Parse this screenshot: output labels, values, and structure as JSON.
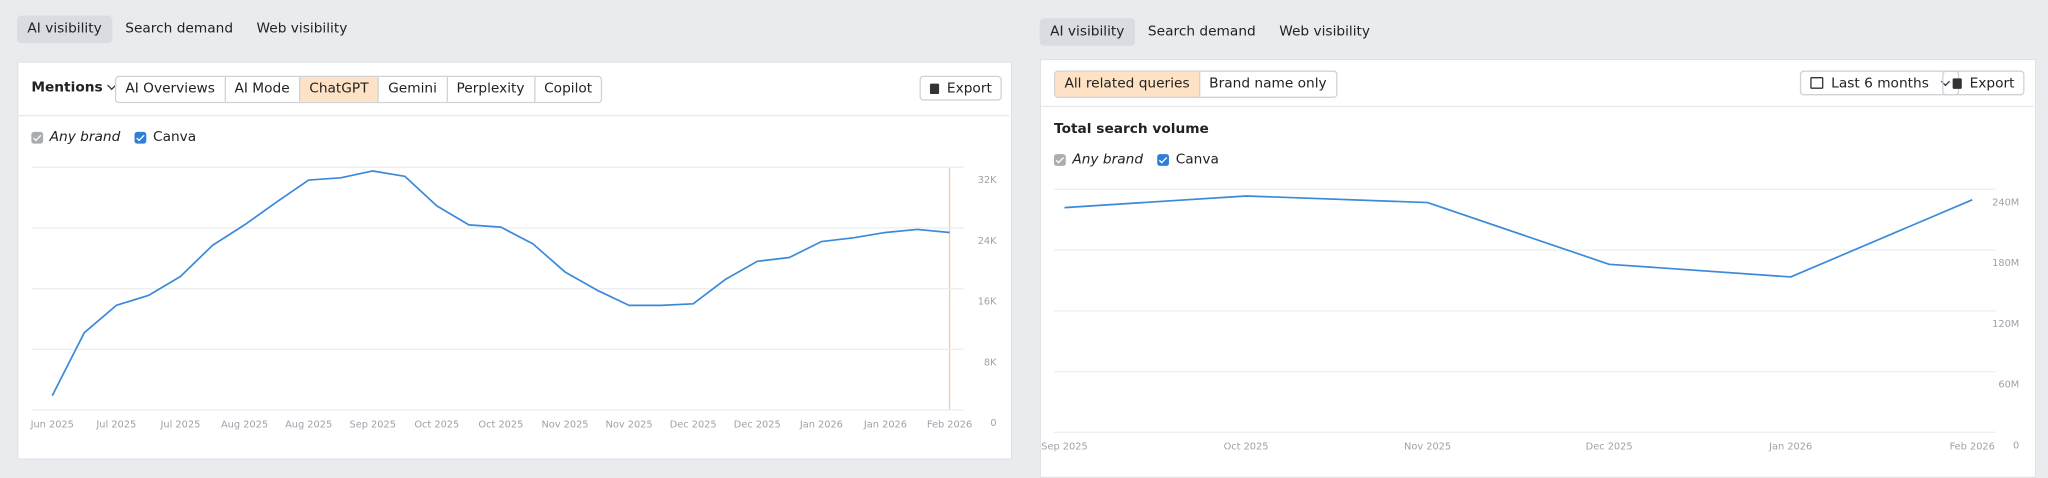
{
  "left": {
    "tabs": [
      "AI visibility",
      "Search demand",
      "Web visibility"
    ],
    "metric": "Mentions",
    "engines": [
      "AI Overviews",
      "AI Mode",
      "ChatGPT",
      "Gemini",
      "Perplexity",
      "Copilot"
    ],
    "export": "Export",
    "filter": "Any brand"
  },
  "right": {
    "tabs": [
      "AI visibility",
      "Search demand",
      "Web visibility"
    ],
    "queries": [
      "All related queries",
      "Brand name only"
    ],
    "period": "Last 6 months",
    "export": "Export",
    "filter": "Any brand"
  },
  "chart_data": [
    {
      "type": "line",
      "categories": [
        "Jun 2025",
        null,
        "Jul 2025",
        null,
        "Jul 2025",
        null,
        "Aug 2025",
        null,
        "Aug 2025",
        null,
        "Sep 2025",
        null,
        "Oct 2025",
        null,
        "Oct 2025",
        null,
        "Nov 2025",
        null,
        "Nov 2025",
        null,
        "Dec 2025",
        null,
        "Dec 2025",
        null,
        "Jan 2026",
        null,
        "Jan 2026",
        null,
        "Feb 2026"
      ],
      "series": [
        {
          "name": "Canva",
          "color": "#3b8ad9",
          "values": [
            1900,
            10200,
            13800,
            15100,
            17600,
            21700,
            24400,
            27400,
            30300,
            30600,
            31500,
            30800,
            26900,
            24400,
            24100,
            21900,
            18200,
            15800,
            13800,
            13800,
            14000,
            17200,
            19600,
            20100,
            22200,
            22700,
            23400,
            23800,
            23400
          ]
        }
      ],
      "ylim": [
        0,
        32000
      ],
      "yticks": [
        0,
        {
          "value": 8000,
          "label": "8K"
        },
        {
          "value": 16000,
          "label": "16K"
        },
        {
          "value": 24000,
          "label": "24K"
        },
        {
          "value": 32000,
          "label": "32K"
        }
      ],
      "grid": true
    },
    {
      "type": "line",
      "title": "Total search volume",
      "categories": [
        "Sep 2025",
        "Oct 2025",
        "Nov 2025",
        "Dec 2025",
        "Jan 2026",
        "Feb 2026"
      ],
      "series": [
        {
          "name": "Canva",
          "color": "#3b8ad9",
          "values": [
            222000000,
            233500000,
            227000000,
            166000000,
            153500000,
            229700000
          ]
        }
      ],
      "ylim": [
        0,
        240000000
      ],
      "yticks": [
        0,
        {
          "value": 60000000,
          "label": "60M"
        },
        {
          "value": 120000000,
          "label": "120M"
        },
        {
          "value": 180000000,
          "label": "180M"
        },
        {
          "value": 240000000,
          "label": "240M"
        }
      ],
      "grid": true
    }
  ]
}
